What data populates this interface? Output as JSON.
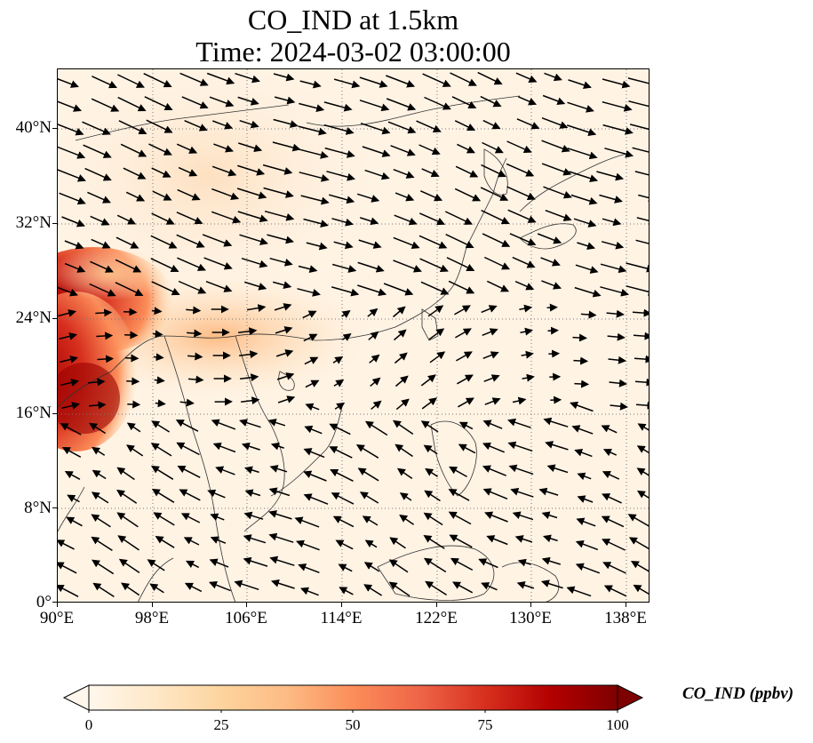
{
  "title": {
    "line1": "CO_IND at 1.5km",
    "line2": "Time: 2024-03-02 03:00:00"
  },
  "map": {
    "lon_range": [
      90,
      140
    ],
    "lat_range": [
      0,
      45
    ],
    "projection": "PlateCarree",
    "gridlines": "dotted",
    "x_ticks": [
      "90°E",
      "98°E",
      "106°E",
      "114°E",
      "122°E",
      "130°E",
      "138°E"
    ],
    "y_ticks": [
      "0°",
      "8°N",
      "16°N",
      "24°N",
      "32°N",
      "40°N"
    ],
    "field": "CO_IND concentration shading with wind vectors",
    "colormap": "OrRd"
  },
  "colorbar": {
    "label": "CO_IND (ppbv)",
    "ticks": [
      "0",
      "25",
      "50",
      "75",
      "100"
    ],
    "range": [
      0,
      100
    ],
    "extend": "both",
    "colors": [
      "#fff7ec",
      "#fee8c8",
      "#fdd49e",
      "#fdbb84",
      "#fc8d59",
      "#ef6548",
      "#d7301f",
      "#b30000",
      "#7f0000"
    ]
  }
}
